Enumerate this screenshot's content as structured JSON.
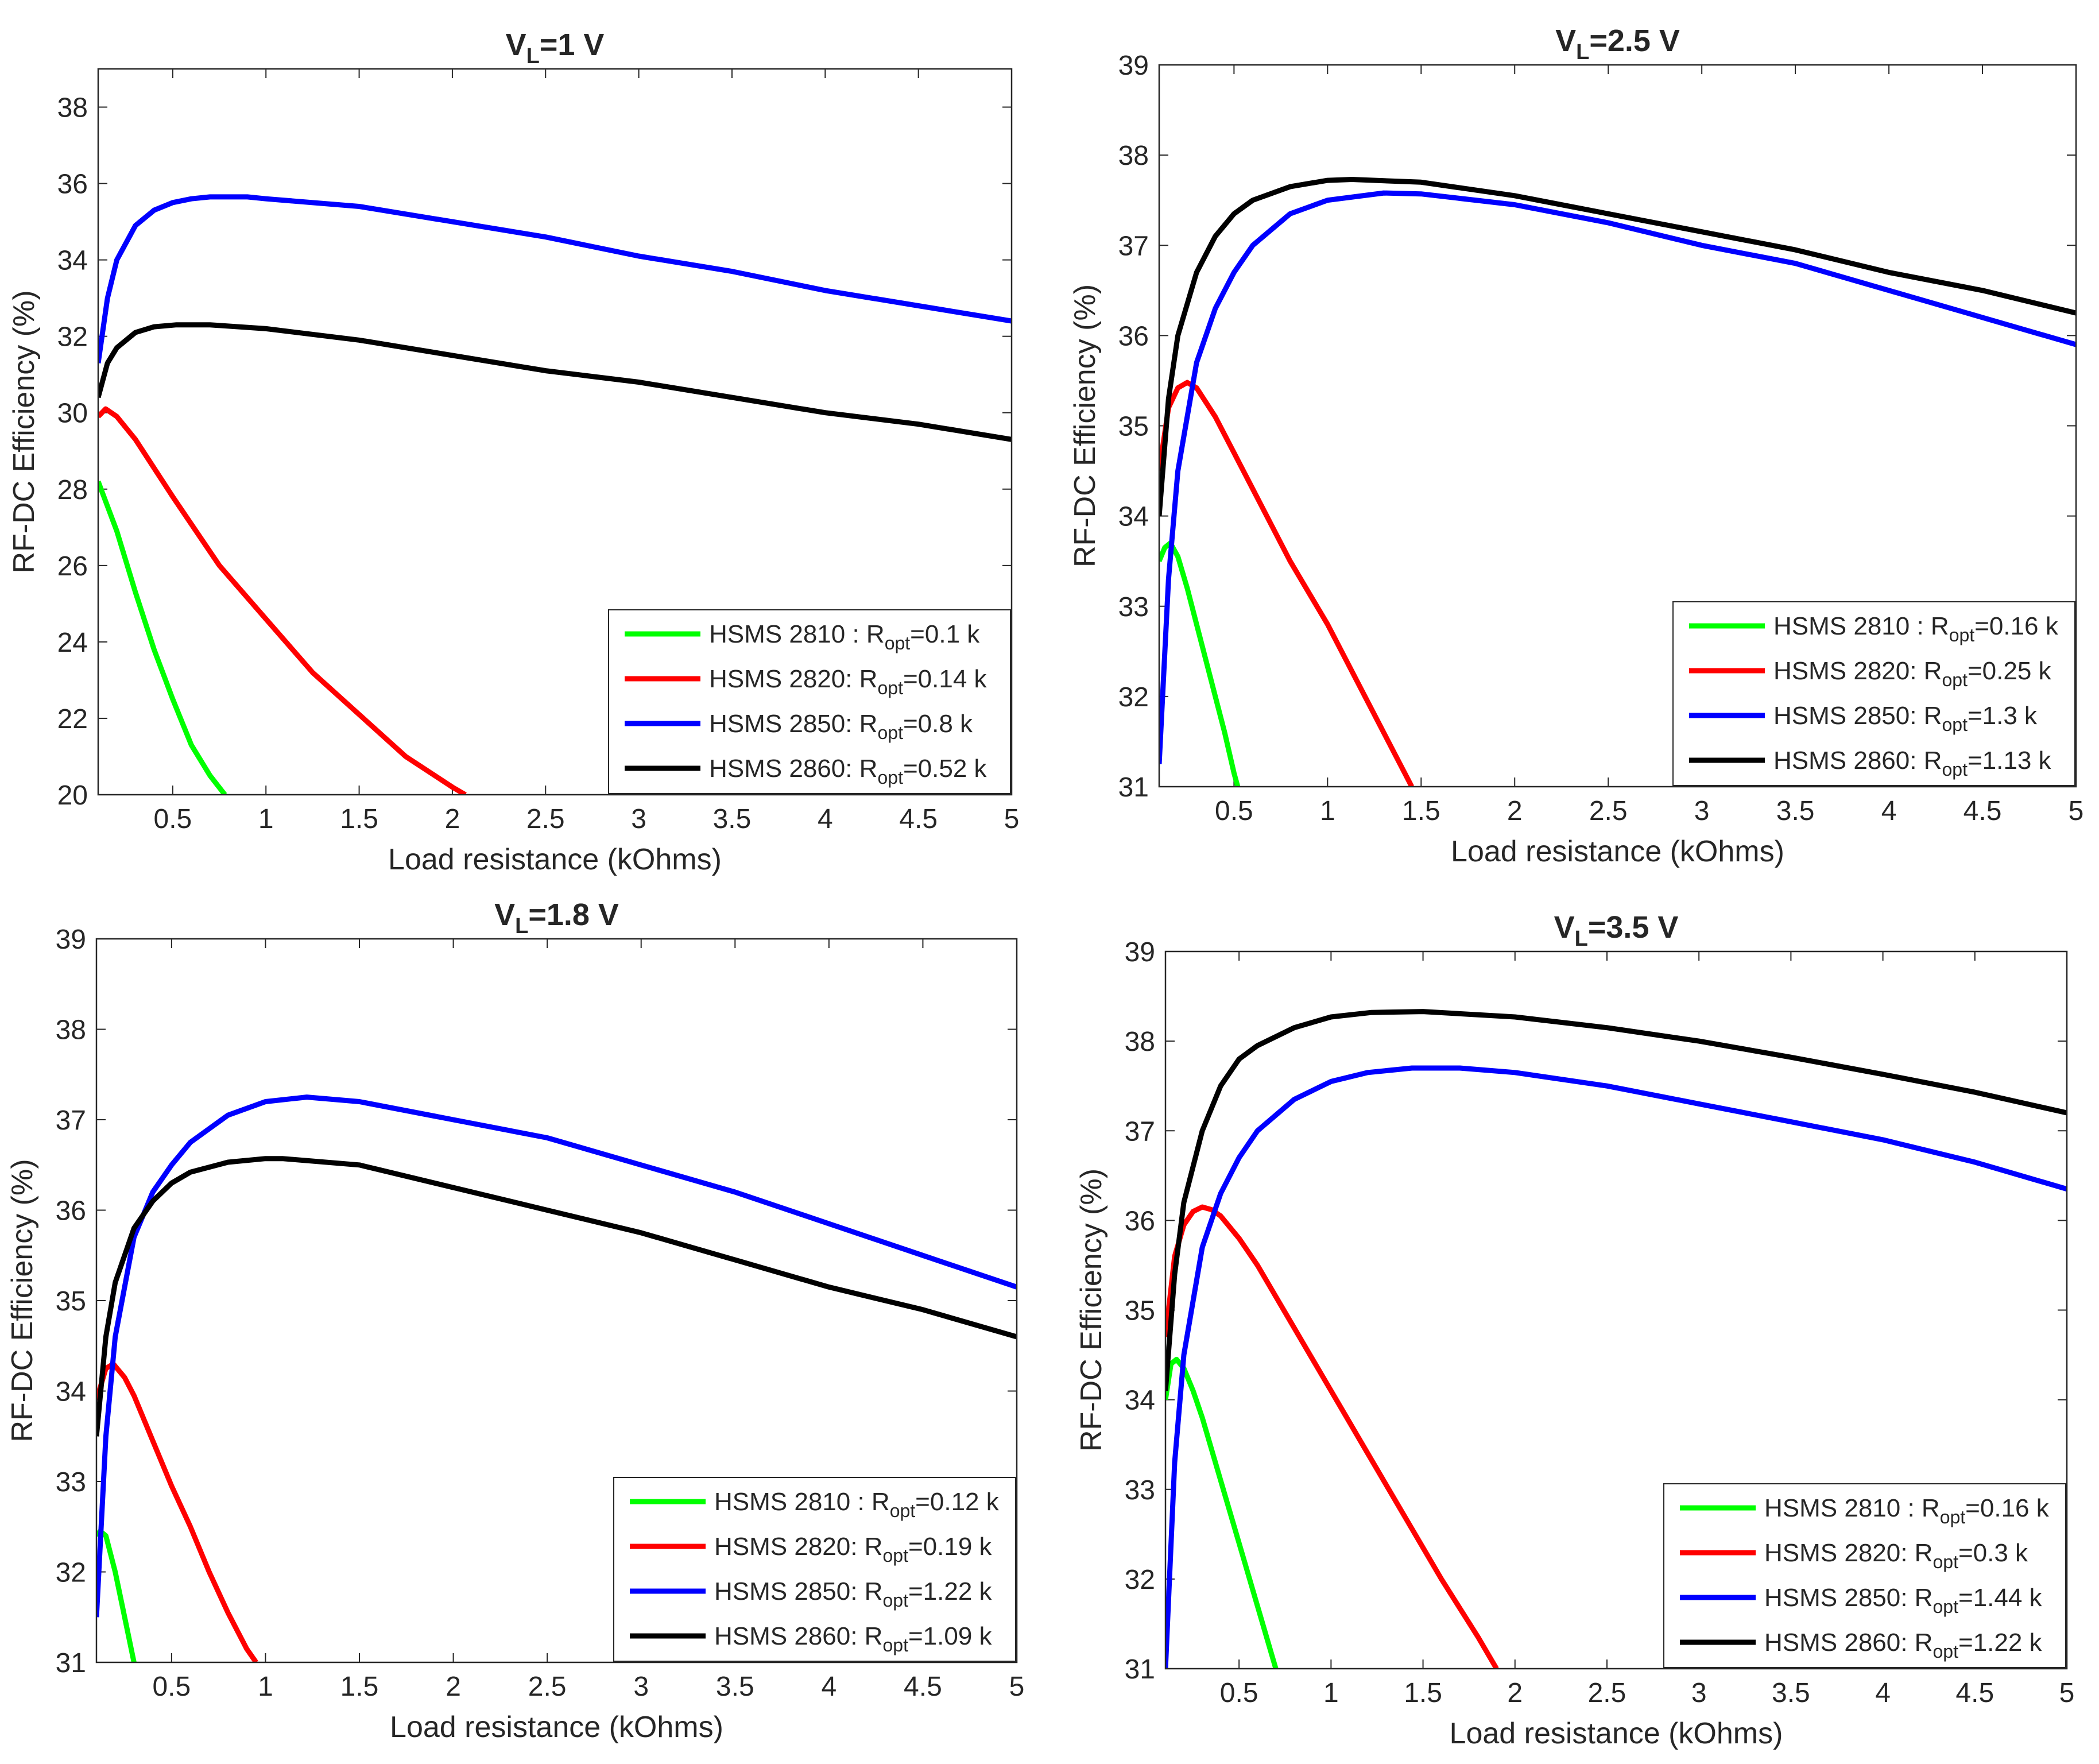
{
  "figure_title": "RF-DC efficiency versus load resistance for four Schottky diodes",
  "colors": {
    "HSMS 2810": "#00ff00",
    "HSMS 2820": "#ff0000",
    "HSMS 2850": "#0000ff",
    "HSMS 2860": "#000000",
    "axis": "#262626",
    "background": "#ffffff"
  },
  "chart_data": [
    {
      "type": "line",
      "title_main": "V",
      "title_sub": "L",
      "title_rest": "=1 V",
      "xlabel": "Load resistance (kOhms)",
      "ylabel": "RF-DC Efficiency (%)",
      "xlim": [
        0.1,
        5
      ],
      "ylim": [
        20,
        39
      ],
      "xticks": [
        0.5,
        1,
        1.5,
        2,
        2.5,
        3,
        3.5,
        4,
        4.5,
        5
      ],
      "yticks": [
        20,
        22,
        24,
        26,
        28,
        30,
        32,
        34,
        36,
        38
      ],
      "legend_position": "bottom-right",
      "series": [
        {
          "name": "HSMS 2810",
          "label_prefix": "HSMS 2810 : R",
          "label_sub": "opt",
          "label_suffix": "=0.1 k",
          "x": [
            0.1,
            0.2,
            0.3,
            0.4,
            0.5,
            0.6,
            0.7,
            0.78
          ],
          "y": [
            28.2,
            26.9,
            25.3,
            23.8,
            22.5,
            21.3,
            20.5,
            20
          ]
        },
        {
          "name": "HSMS 2820",
          "label_prefix": "HSMS 2820: R",
          "label_sub": "opt",
          "label_suffix": "=0.14 k",
          "x": [
            0.1,
            0.14,
            0.2,
            0.3,
            0.5,
            0.75,
            1.0,
            1.25,
            1.5,
            1.75,
            2.0,
            2.07
          ],
          "y": [
            29.9,
            30.1,
            29.9,
            29.3,
            27.8,
            26.0,
            24.6,
            23.2,
            22.1,
            21.0,
            20.2,
            20
          ]
        },
        {
          "name": "HSMS 2850",
          "label_prefix": "HSMS 2850: R",
          "label_sub": "opt",
          "label_suffix": "=0.8 k",
          "x": [
            0.1,
            0.15,
            0.2,
            0.3,
            0.4,
            0.5,
            0.6,
            0.7,
            0.8,
            0.9,
            1.0,
            1.5,
            2.0,
            2.5,
            3.0,
            3.5,
            4.0,
            4.5,
            5.0
          ],
          "y": [
            31.3,
            33.0,
            34.0,
            34.9,
            35.3,
            35.5,
            35.6,
            35.65,
            35.65,
            35.65,
            35.6,
            35.4,
            35.0,
            34.6,
            34.1,
            33.7,
            33.2,
            32.8,
            32.4
          ]
        },
        {
          "name": "HSMS 2860",
          "label_prefix": "HSMS 2860: R",
          "label_sub": "opt",
          "label_suffix": "=0.52 k",
          "x": [
            0.1,
            0.15,
            0.2,
            0.3,
            0.4,
            0.52,
            0.7,
            1.0,
            1.5,
            2.0,
            2.5,
            3.0,
            3.5,
            4.0,
            4.5,
            5.0
          ],
          "y": [
            30.4,
            31.3,
            31.7,
            32.1,
            32.25,
            32.3,
            32.3,
            32.2,
            31.9,
            31.5,
            31.1,
            30.8,
            30.4,
            30.0,
            29.7,
            29.3
          ]
        }
      ]
    },
    {
      "type": "line",
      "title_main": "V",
      "title_sub": "L",
      "title_rest": "=2.5 V",
      "xlabel": "Load resistance (kOhms)",
      "ylabel": "RF-DC Efficiency (%)",
      "xlim": [
        0.1,
        5
      ],
      "ylim": [
        31,
        39
      ],
      "xticks": [
        0.5,
        1,
        1.5,
        2,
        2.5,
        3,
        3.5,
        4,
        4.5,
        5
      ],
      "yticks": [
        31,
        32,
        33,
        34,
        35,
        36,
        37,
        38,
        39
      ],
      "legend_position": "bottom-right",
      "series": [
        {
          "name": "HSMS 2810",
          "label_prefix": "HSMS 2810 : R",
          "label_sub": "opt",
          "label_suffix": "=0.16 k",
          "x": [
            0.1,
            0.13,
            0.16,
            0.2,
            0.25,
            0.3,
            0.35,
            0.4,
            0.45,
            0.5,
            0.52
          ],
          "y": [
            33.5,
            33.65,
            33.7,
            33.55,
            33.2,
            32.8,
            32.4,
            32.0,
            31.6,
            31.15,
            31
          ]
        },
        {
          "name": "HSMS 2820",
          "label_prefix": "HSMS 2820: R",
          "label_sub": "opt",
          "label_suffix": "=0.25 k",
          "x": [
            0.1,
            0.15,
            0.2,
            0.25,
            0.3,
            0.4,
            0.5,
            0.6,
            0.8,
            1.0,
            1.2,
            1.4,
            1.45
          ],
          "y": [
            34.5,
            35.2,
            35.42,
            35.48,
            35.42,
            35.1,
            34.7,
            34.3,
            33.5,
            32.8,
            32.0,
            31.2,
            31
          ]
        },
        {
          "name": "HSMS 2850",
          "label_prefix": "HSMS 2850: R",
          "label_sub": "opt",
          "label_suffix": "=1.3 k",
          "x": [
            0.1,
            0.15,
            0.2,
            0.3,
            0.4,
            0.5,
            0.6,
            0.8,
            1.0,
            1.3,
            1.5,
            2.0,
            2.5,
            3.0,
            3.5,
            4.0,
            4.5,
            5.0
          ],
          "y": [
            31.25,
            33.3,
            34.5,
            35.7,
            36.3,
            36.7,
            37.0,
            37.35,
            37.5,
            37.58,
            37.57,
            37.45,
            37.25,
            37.0,
            36.8,
            36.5,
            36.2,
            35.9
          ]
        },
        {
          "name": "HSMS 2860",
          "label_prefix": "HSMS 2860: R",
          "label_sub": "opt",
          "label_suffix": "=1.13 k",
          "x": [
            0.1,
            0.15,
            0.2,
            0.3,
            0.4,
            0.5,
            0.6,
            0.8,
            1.0,
            1.13,
            1.5,
            2.0,
            2.5,
            3.0,
            3.5,
            4.0,
            4.5,
            5.0
          ],
          "y": [
            34.0,
            35.3,
            36.0,
            36.7,
            37.1,
            37.35,
            37.5,
            37.65,
            37.72,
            37.73,
            37.7,
            37.55,
            37.35,
            37.15,
            36.95,
            36.7,
            36.5,
            36.25
          ]
        }
      ]
    },
    {
      "type": "line",
      "title_main": "V",
      "title_sub": "L",
      "title_rest": "=1.8 V",
      "xlabel": "Load resistance (kOhms)",
      "ylabel": "RF-DC Efficiency (%)",
      "xlim": [
        0.1,
        5
      ],
      "ylim": [
        31,
        39
      ],
      "xticks": [
        0.5,
        1,
        1.5,
        2,
        2.5,
        3,
        3.5,
        4,
        4.5,
        5
      ],
      "yticks": [
        31,
        32,
        33,
        34,
        35,
        36,
        37,
        38,
        39
      ],
      "legend_position": "bottom-right",
      "series": [
        {
          "name": "HSMS 2810",
          "label_prefix": "HSMS 2810 : R",
          "label_sub": "opt",
          "label_suffix": "=0.12 k",
          "x": [
            0.1,
            0.12,
            0.15,
            0.2,
            0.25,
            0.3
          ],
          "y": [
            32.4,
            32.45,
            32.4,
            32.0,
            31.5,
            31
          ]
        },
        {
          "name": "HSMS 2820",
          "label_prefix": "HSMS 2820: R",
          "label_sub": "opt",
          "label_suffix": "=0.19 k",
          "x": [
            0.1,
            0.15,
            0.19,
            0.25,
            0.3,
            0.4,
            0.5,
            0.6,
            0.7,
            0.8,
            0.9,
            0.95
          ],
          "y": [
            33.9,
            34.25,
            34.3,
            34.15,
            33.95,
            33.45,
            32.95,
            32.5,
            32.0,
            31.55,
            31.15,
            31
          ]
        },
        {
          "name": "HSMS 2850",
          "label_prefix": "HSMS 2850: R",
          "label_sub": "opt",
          "label_suffix": "=1.22 k",
          "x": [
            0.1,
            0.15,
            0.2,
            0.3,
            0.4,
            0.5,
            0.6,
            0.8,
            1.0,
            1.22,
            1.5,
            2.0,
            2.5,
            3.0,
            3.5,
            4.0,
            4.5,
            5.0
          ],
          "y": [
            31.5,
            33.5,
            34.6,
            35.7,
            36.2,
            36.5,
            36.75,
            37.05,
            37.2,
            37.25,
            37.2,
            37.0,
            36.8,
            36.5,
            36.2,
            35.85,
            35.5,
            35.15
          ]
        },
        {
          "name": "HSMS 2860",
          "label_prefix": "HSMS 2860: R",
          "label_sub": "opt",
          "label_suffix": "=1.09 k",
          "x": [
            0.1,
            0.15,
            0.2,
            0.3,
            0.4,
            0.5,
            0.6,
            0.8,
            1.0,
            1.09,
            1.5,
            2.0,
            2.5,
            3.0,
            3.5,
            4.0,
            4.5,
            5.0
          ],
          "y": [
            33.5,
            34.6,
            35.2,
            35.8,
            36.1,
            36.3,
            36.42,
            36.53,
            36.57,
            36.57,
            36.5,
            36.25,
            36.0,
            35.75,
            35.45,
            35.15,
            34.9,
            34.6
          ]
        }
      ]
    },
    {
      "type": "line",
      "title_main": "V",
      "title_sub": "L",
      "title_rest": "=3.5 V",
      "xlabel": "Load resistance (kOhms)",
      "ylabel": "RF-DC Efficiency (%)",
      "xlim": [
        0.1,
        5
      ],
      "ylim": [
        31,
        39
      ],
      "xticks": [
        0.5,
        1,
        1.5,
        2,
        2.5,
        3,
        3.5,
        4,
        4.5,
        5
      ],
      "yticks": [
        31,
        32,
        33,
        34,
        35,
        36,
        37,
        38,
        39
      ],
      "legend_position": "bottom-right",
      "series": [
        {
          "name": "HSMS 2810",
          "label_prefix": "HSMS 2810 : R",
          "label_sub": "opt",
          "label_suffix": "=0.16 k",
          "x": [
            0.1,
            0.13,
            0.16,
            0.2,
            0.25,
            0.3,
            0.4,
            0.5,
            0.6,
            0.7
          ],
          "y": [
            34.0,
            34.4,
            34.45,
            34.35,
            34.1,
            33.8,
            33.1,
            32.4,
            31.7,
            31
          ]
        },
        {
          "name": "HSMS 2820",
          "label_prefix": "HSMS 2820: R",
          "label_sub": "opt",
          "label_suffix": "=0.3 k",
          "x": [
            0.1,
            0.15,
            0.2,
            0.25,
            0.3,
            0.35,
            0.4,
            0.5,
            0.6,
            0.8,
            1.0,
            1.2,
            1.4,
            1.6,
            1.8,
            1.9
          ],
          "y": [
            34.7,
            35.6,
            35.95,
            36.1,
            36.15,
            36.12,
            36.05,
            35.8,
            35.5,
            34.8,
            34.1,
            33.4,
            32.7,
            32.0,
            31.35,
            31
          ]
        },
        {
          "name": "HSMS 2850",
          "label_prefix": "HSMS 2850: R",
          "label_sub": "opt",
          "label_suffix": "=1.44 k",
          "x": [
            0.1,
            0.15,
            0.2,
            0.3,
            0.4,
            0.5,
            0.6,
            0.8,
            1.0,
            1.2,
            1.44,
            1.7,
            2.0,
            2.5,
            3.0,
            3.5,
            4.0,
            4.5,
            5.0
          ],
          "y": [
            31.0,
            33.3,
            34.5,
            35.7,
            36.3,
            36.7,
            37.0,
            37.35,
            37.55,
            37.65,
            37.7,
            37.7,
            37.65,
            37.5,
            37.3,
            37.1,
            36.9,
            36.65,
            36.35
          ]
        },
        {
          "name": "HSMS 2860",
          "label_prefix": "HSMS 2860: R",
          "label_sub": "opt",
          "label_suffix": "=1.22 k",
          "x": [
            0.1,
            0.15,
            0.2,
            0.3,
            0.4,
            0.5,
            0.6,
            0.8,
            1.0,
            1.22,
            1.5,
            2.0,
            2.5,
            3.0,
            3.5,
            4.0,
            4.5,
            5.0
          ],
          "y": [
            34.1,
            35.4,
            36.2,
            37.0,
            37.5,
            37.8,
            37.95,
            38.15,
            38.27,
            38.32,
            38.33,
            38.27,
            38.15,
            38.0,
            37.82,
            37.63,
            37.43,
            37.2
          ]
        }
      ]
    }
  ]
}
